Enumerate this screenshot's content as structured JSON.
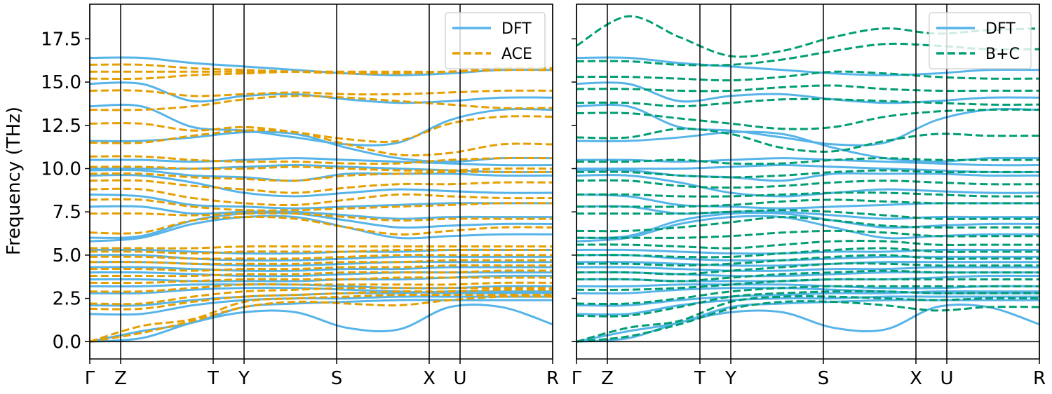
{
  "chart_data": [
    {
      "type": "line",
      "panel": "left",
      "ylabel": "Frequency (THz)",
      "ylim": [
        -1,
        19.5
      ],
      "yticks": [
        0.0,
        2.5,
        5.0,
        7.5,
        10.0,
        12.5,
        15.0,
        17.5
      ],
      "ytick_labels": [
        "0.0",
        "2.5",
        "5.0",
        "7.5",
        "10.0",
        "12.5",
        "15.0",
        "17.5"
      ],
      "xlim": [
        0,
        15
      ],
      "xticks": [
        0,
        1,
        4,
        5,
        8,
        11,
        12,
        15
      ],
      "xtick_labels": [
        "Γ",
        "Z",
        "T",
        "Y",
        "S",
        "X",
        "U",
        "R"
      ],
      "legend_placement": "top-right",
      "series": [
        {
          "name": "DFT",
          "style": "solid",
          "color": "#56B4E9",
          "bands": [
            [
              0,
              0.2,
              1.1,
              1.7,
              1.7,
              0.8,
              0.7,
              2.0,
              2.0,
              1.0
            ],
            [
              0,
              0.6,
              1.1,
              2.0,
              2.2,
              2.3,
              2.4,
              2.4,
              2.4,
              2.4
            ],
            [
              1.6,
              1.6,
              2.1,
              2.4,
              2.5,
              2.5,
              2.6,
              2.6,
              2.6,
              2.6
            ],
            [
              2.1,
              2.1,
              2.4,
              2.6,
              2.7,
              2.8,
              2.8,
              2.9,
              2.9,
              2.9
            ],
            [
              2.8,
              2.8,
              3.0,
              3.1,
              3.1,
              3.0,
              2.9,
              2.8,
              2.8,
              2.8
            ],
            [
              3.2,
              3.2,
              3.3,
              3.3,
              3.3,
              3.2,
              3.1,
              3.1,
              3.2,
              3.2
            ],
            [
              3.6,
              3.6,
              3.5,
              3.5,
              3.5,
              3.6,
              3.6,
              3.7,
              3.8,
              3.8
            ],
            [
              4.0,
              4.0,
              3.9,
              3.8,
              3.8,
              3.9,
              4.0,
              4.0,
              4.0,
              4.0
            ],
            [
              4.3,
              4.3,
              4.2,
              4.1,
              4.1,
              4.2,
              4.2,
              4.3,
              4.3,
              4.3
            ],
            [
              4.6,
              4.6,
              4.5,
              4.4,
              4.4,
              4.5,
              4.6,
              4.6,
              4.6,
              4.6
            ],
            [
              5.0,
              5.0,
              4.8,
              4.7,
              4.7,
              4.8,
              4.9,
              4.9,
              4.9,
              4.9
            ],
            [
              5.3,
              5.3,
              5.2,
              5.1,
              5.1,
              5.2,
              5.2,
              5.3,
              5.3,
              5.3
            ],
            [
              5.8,
              6.0,
              6.8,
              7.2,
              7.2,
              6.6,
              6.0,
              6.1,
              6.2,
              6.2
            ],
            [
              6.0,
              6.1,
              7.0,
              7.4,
              7.4,
              7.0,
              6.6,
              6.7,
              6.8,
              6.8
            ],
            [
              7.8,
              7.8,
              7.4,
              7.5,
              7.5,
              7.3,
              7.1,
              7.2,
              7.2,
              7.2
            ],
            [
              8.5,
              8.4,
              7.9,
              7.8,
              7.7,
              7.8,
              7.9,
              8.0,
              8.0,
              8.0
            ],
            [
              9.6,
              9.6,
              9.2,
              8.6,
              8.4,
              8.6,
              8.8,
              8.7,
              8.6,
              8.6
            ],
            [
              9.9,
              9.9,
              9.6,
              9.5,
              9.3,
              9.7,
              9.7,
              9.7,
              9.6,
              9.6
            ],
            [
              10.0,
              10.0,
              10.0,
              10.1,
              10.2,
              10.1,
              10.0,
              9.9,
              9.8,
              9.8
            ],
            [
              10.5,
              10.5,
              10.4,
              10.5,
              10.6,
              10.5,
              10.4,
              10.3,
              10.2,
              10.2
            ],
            [
              11.6,
              11.6,
              11.8,
              12.1,
              12.0,
              11.2,
              10.6,
              10.4,
              10.6,
              10.6
            ],
            [
              13.6,
              13.6,
              12.4,
              12.2,
              11.8,
              11.4,
              11.5,
              12.8,
              13.4,
              13.4
            ],
            [
              14.9,
              14.9,
              13.9,
              14.2,
              14.3,
              14.0,
              13.8,
              13.9,
              14.1,
              14.1
            ],
            [
              16.4,
              16.4,
              16.1,
              15.9,
              15.7,
              15.5,
              15.4,
              15.5,
              15.7,
              15.7
            ]
          ]
        },
        {
          "name": "ACE",
          "style": "dashed",
          "color": "#E69F00",
          "bands": [
            [
              0,
              0.5,
              1.2,
              2.0,
              2.3,
              2.2,
              2.1,
              2.4,
              2.6,
              2.6
            ],
            [
              0,
              0.9,
              1.3,
              2.3,
              2.5,
              2.6,
              2.7,
              2.7,
              2.7,
              2.7
            ],
            [
              1.9,
              1.9,
              2.3,
              2.6,
              2.7,
              2.8,
              2.9,
              2.9,
              3.0,
              3.0
            ],
            [
              2.2,
              2.2,
              2.6,
              2.9,
              3.0,
              3.1,
              3.1,
              3.1,
              3.1,
              3.1
            ],
            [
              2.9,
              2.9,
              3.1,
              3.3,
              3.3,
              3.3,
              3.3,
              3.3,
              3.4,
              3.4
            ],
            [
              3.4,
              3.4,
              3.5,
              3.6,
              3.6,
              3.6,
              3.7,
              3.7,
              3.7,
              3.7
            ],
            [
              3.8,
              3.8,
              3.8,
              3.9,
              3.9,
              4.0,
              4.0,
              4.0,
              4.1,
              4.1
            ],
            [
              4.2,
              4.2,
              4.1,
              4.2,
              4.2,
              4.3,
              4.3,
              4.4,
              4.4,
              4.4
            ],
            [
              4.6,
              4.6,
              4.5,
              4.5,
              4.5,
              4.6,
              4.6,
              4.7,
              4.7,
              4.7
            ],
            [
              4.9,
              4.9,
              4.8,
              4.8,
              4.8,
              4.9,
              5.0,
              5.0,
              5.0,
              5.0
            ],
            [
              5.2,
              5.2,
              5.1,
              5.2,
              5.2,
              5.2,
              5.3,
              5.3,
              5.3,
              5.3
            ],
            [
              5.4,
              5.4,
              5.4,
              5.5,
              5.5,
              5.5,
              5.5,
              5.5,
              5.5,
              5.5
            ],
            [
              6.3,
              6.3,
              7.0,
              7.2,
              7.1,
              6.6,
              6.2,
              6.4,
              6.6,
              6.6
            ],
            [
              7.4,
              7.4,
              7.3,
              7.4,
              7.4,
              7.2,
              7.0,
              7.1,
              7.1,
              7.1
            ],
            [
              8.2,
              8.2,
              7.8,
              7.6,
              7.6,
              7.7,
              7.8,
              7.9,
              8.0,
              8.0
            ],
            [
              8.8,
              8.8,
              8.3,
              8.0,
              7.9,
              8.2,
              8.5,
              8.4,
              8.3,
              8.3
            ],
            [
              9.3,
              9.3,
              9.0,
              8.8,
              8.6,
              8.9,
              9.1,
              9.1,
              9.2,
              9.2
            ],
            [
              9.7,
              9.7,
              9.5,
              9.4,
              9.3,
              9.6,
              9.7,
              9.8,
              9.8,
              9.8
            ],
            [
              10.1,
              10.1,
              10.0,
              10.0,
              10.1,
              10.0,
              9.9,
              9.9,
              10.0,
              10.0
            ],
            [
              10.7,
              10.7,
              10.5,
              10.4,
              10.4,
              10.3,
              10.3,
              10.5,
              10.6,
              10.6
            ],
            [
              11.5,
              11.5,
              11.9,
              12.2,
              12.1,
              11.4,
              10.8,
              10.9,
              11.4,
              11.4
            ],
            [
              12.6,
              12.6,
              12.2,
              12.4,
              12.1,
              11.7,
              11.6,
              12.6,
              13.0,
              13.0
            ],
            [
              13.4,
              13.4,
              13.6,
              14.0,
              14.2,
              14.1,
              13.9,
              13.7,
              13.5,
              13.5
            ],
            [
              14.5,
              14.5,
              14.2,
              14.3,
              14.4,
              14.3,
              14.3,
              14.4,
              14.5,
              14.5
            ],
            [
              15.2,
              15.2,
              15.4,
              15.5,
              15.6,
              15.6,
              15.6,
              15.6,
              15.7,
              15.7
            ],
            [
              15.6,
              15.6,
              15.6,
              15.6,
              15.6,
              15.5,
              15.5,
              15.6,
              15.7,
              15.7
            ],
            [
              16.0,
              16.0,
              15.8,
              15.7,
              15.6,
              15.5,
              15.5,
              15.6,
              15.8,
              15.8
            ]
          ]
        }
      ]
    },
    {
      "type": "line",
      "panel": "right",
      "ylim": [
        -1,
        19.5
      ],
      "yticks": [
        0.0,
        2.5,
        5.0,
        7.5,
        10.0,
        12.5,
        15.0,
        17.5
      ],
      "xlim": [
        0,
        15
      ],
      "xticks": [
        0,
        1,
        4,
        5,
        8,
        11,
        12,
        15
      ],
      "xtick_labels": [
        "Γ",
        "Z",
        "T",
        "Y",
        "S",
        "X",
        "U",
        "R"
      ],
      "legend_placement": "top-right",
      "series": [
        {
          "name": "DFT",
          "style": "solid",
          "color": "#56B4E9",
          "bands": "same as left panel DFT"
        },
        {
          "name": "B+C",
          "style": "dashed",
          "color": "#009E73",
          "bands": [
            [
              0,
              0.3,
              1.0,
              1.9,
              2.3,
              2.3,
              2.1,
              1.8,
              2.0,
              2.0
            ],
            [
              0,
              0.8,
              1.2,
              2.3,
              2.6,
              2.6,
              2.5,
              2.4,
              2.5,
              2.5
            ],
            [
              1.5,
              1.5,
              2.0,
              2.6,
              2.8,
              2.9,
              2.9,
              2.8,
              2.8,
              2.8
            ],
            [
              2.2,
              2.2,
              2.5,
              2.9,
              3.1,
              3.2,
              3.2,
              3.2,
              3.2,
              3.2
            ],
            [
              3.0,
              3.0,
              3.1,
              3.3,
              3.5,
              3.6,
              3.6,
              3.6,
              3.6,
              3.6
            ],
            [
              3.6,
              3.6,
              3.5,
              3.7,
              3.9,
              4.0,
              4.1,
              4.0,
              4.0,
              4.0
            ],
            [
              4.0,
              4.0,
              3.9,
              4.1,
              4.3,
              4.5,
              4.5,
              4.4,
              4.4,
              4.4
            ],
            [
              4.5,
              4.5,
              4.4,
              4.5,
              4.7,
              4.9,
              5.0,
              4.8,
              4.8,
              4.8
            ],
            [
              5.0,
              5.0,
              4.9,
              4.9,
              5.1,
              5.3,
              5.4,
              5.2,
              5.2,
              5.2
            ],
            [
              5.6,
              5.6,
              5.5,
              5.4,
              5.6,
              5.8,
              5.8,
              5.6,
              5.6,
              5.6
            ],
            [
              6.0,
              6.0,
              6.0,
              6.1,
              6.3,
              6.4,
              6.3,
              6.1,
              6.1,
              6.1
            ],
            [
              6.4,
              6.4,
              6.6,
              6.9,
              7.2,
              7.0,
              6.7,
              6.6,
              6.6,
              6.6
            ],
            [
              7.4,
              7.4,
              7.4,
              7.5,
              7.6,
              7.5,
              7.3,
              7.1,
              7.1,
              7.1
            ],
            [
              7.8,
              7.8,
              7.8,
              7.9,
              8.1,
              8.2,
              8.1,
              8.0,
              8.0,
              8.0
            ],
            [
              8.5,
              8.5,
              8.4,
              8.4,
              8.5,
              8.6,
              8.6,
              8.5,
              8.4,
              8.4
            ],
            [
              9.3,
              9.3,
              9.0,
              8.9,
              9.0,
              9.2,
              9.3,
              9.2,
              9.1,
              9.1
            ],
            [
              9.8,
              9.8,
              9.6,
              9.5,
              9.6,
              9.8,
              9.9,
              9.8,
              9.8,
              9.8
            ],
            [
              10.4,
              10.4,
              10.5,
              10.3,
              10.3,
              10.5,
              10.6,
              10.5,
              10.5,
              10.5
            ],
            [
              11.8,
              11.8,
              12.3,
              12.0,
              11.2,
              11.0,
              11.6,
              12.0,
              11.9,
              11.9
            ],
            [
              13.2,
              13.2,
              12.9,
              12.6,
              12.3,
              12.4,
              13.0,
              13.3,
              13.4,
              13.4
            ],
            [
              13.8,
              13.8,
              13.6,
              13.8,
              14.0,
              14.0,
              13.9,
              13.8,
              13.7,
              13.7
            ],
            [
              14.6,
              14.6,
              14.5,
              14.5,
              14.7,
              14.8,
              14.6,
              14.5,
              14.5,
              14.5
            ],
            [
              15.3,
              15.3,
              15.2,
              15.1,
              15.3,
              15.6,
              15.5,
              15.3,
              15.2,
              15.2
            ],
            [
              16.2,
              16.2,
              16.0,
              16.0,
              16.3,
              16.8,
              17.2,
              17.1,
              16.9,
              16.9
            ],
            [
              17.1,
              18.8,
              17.6,
              16.5,
              16.8,
              17.6,
              18.1,
              17.8,
              18.0,
              18.1
            ]
          ]
        }
      ]
    }
  ]
}
